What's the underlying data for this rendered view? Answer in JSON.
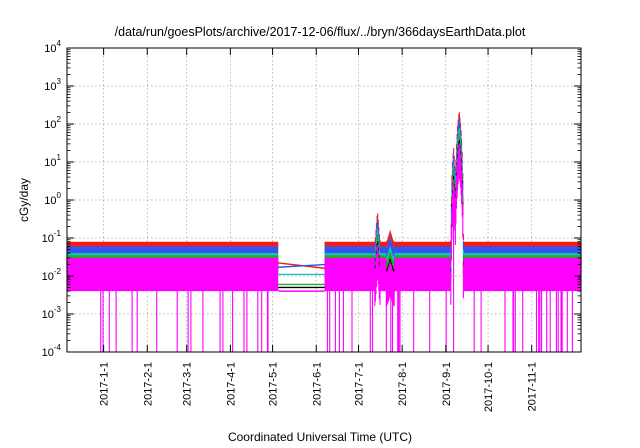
{
  "chart_data": {
    "type": "line",
    "title": "/data/run/goesPlots/archive/2017-12-06/flux/../bryn/366daysEarthData.plot",
    "xlabel": "Coordinated Universal Time (UTC)",
    "ylabel": "cGy/day",
    "yscale": "log",
    "ylim": [
      0.0001,
      10000
    ],
    "xlim": [
      "2016-12-06",
      "2017-12-06"
    ],
    "y_ticks": [
      {
        "base": "10",
        "exp": "-4",
        "value": 0.0001
      },
      {
        "base": "10",
        "exp": "-3",
        "value": 0.001
      },
      {
        "base": "10",
        "exp": "-2",
        "value": 0.01
      },
      {
        "base": "10",
        "exp": "-1",
        "value": 0.1
      },
      {
        "base": "10",
        "exp": "0",
        "value": 1
      },
      {
        "base": "10",
        "exp": "1",
        "value": 10
      },
      {
        "base": "10",
        "exp": "2",
        "value": 100
      },
      {
        "base": "10",
        "exp": "3",
        "value": 1000
      },
      {
        "base": "10",
        "exp": "4",
        "value": 10000
      }
    ],
    "x_ticks": [
      "2017-1-1",
      "2017-2-1",
      "2017-3-1",
      "2017-4-1",
      "2017-5-1",
      "2017-6-1",
      "2017-7-1",
      "2017-8-1",
      "2017-9-1",
      "2017-10-1",
      "2017-11-1"
    ],
    "grid": true,
    "data_gap": [
      "2017-05-05",
      "2017-06-07"
    ],
    "series": [
      {
        "color": "#ee1c1c",
        "baseline": 0.065,
        "noise_low": 0.055,
        "noise_high": 0.08
      },
      {
        "color": "#3355ee",
        "baseline": 0.045,
        "noise_low": 0.032,
        "noise_high": 0.06
      },
      {
        "color": "#16c4c4",
        "baseline": 0.03,
        "noise_low": 0.02,
        "noise_high": 0.04
      },
      {
        "color": "#22aa22",
        "baseline": 0.025,
        "noise_low": 0.018,
        "noise_high": 0.035
      },
      {
        "color": "#000000",
        "baseline": 0.02,
        "noise_low": 0.012,
        "noise_high": 0.028
      },
      {
        "color": "#ff00ff",
        "baseline": 0.015,
        "noise_low": 0.004,
        "noise_high": 0.03
      }
    ],
    "gap_lines": [
      {
        "color": "#ee1c1c",
        "y_start": 0.022,
        "y_end": 0.016
      },
      {
        "color": "#3355ee",
        "y_start": 0.017,
        "y_end": 0.02
      },
      {
        "color": "#16c4c4",
        "y_start": 0.011,
        "y_end": 0.011
      },
      {
        "color": "#22aa22",
        "y_start": 0.006,
        "y_end": 0.006
      },
      {
        "color": "#000000",
        "y_start": 0.005,
        "y_end": 0.005
      },
      {
        "color": "#ff00ff",
        "y_start": 0.004,
        "y_end": 0.004
      }
    ],
    "events": [
      {
        "date": "2017-07-14",
        "peak": 0.4,
        "width_days": 2
      },
      {
        "date": "2017-07-23",
        "peak": 0.13,
        "width_days": 3
      },
      {
        "date": "2017-09-06",
        "peak": 20,
        "width_days": 2
      },
      {
        "date": "2017-09-10",
        "peak": 180,
        "width_days": 3
      }
    ]
  }
}
